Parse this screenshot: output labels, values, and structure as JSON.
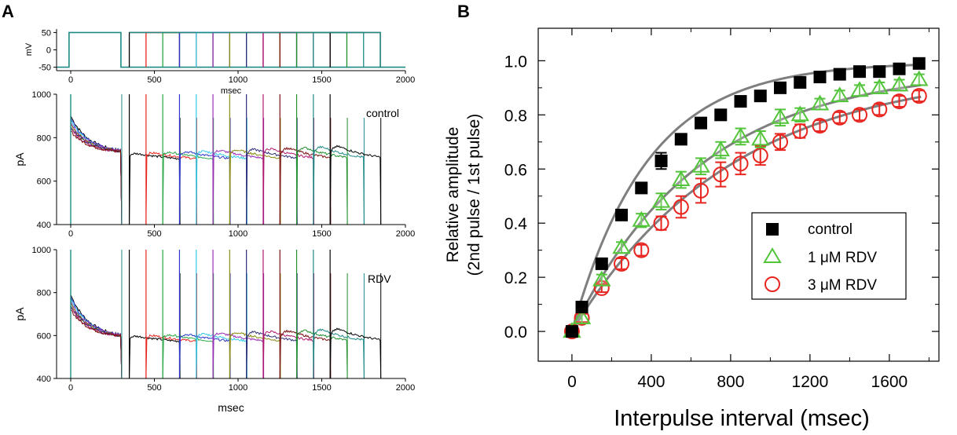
{
  "panels": {
    "A": "A",
    "B": "B"
  },
  "colors": {
    "trace_palette": [
      "#000000",
      "#e8251f",
      "#29a745",
      "#2b36c8",
      "#33c8e6",
      "#9b2fb8",
      "#8a8a12",
      "#2e2e7a",
      "#b0186e",
      "#7a1010",
      "#1f8f2c",
      "#1e8a86"
    ],
    "control": "#000000",
    "rdv1": "#52c43a",
    "rdv3": "#e8251f",
    "fit": "#7f7f7f"
  },
  "chart_data": [
    {
      "id": "protocol",
      "type": "line",
      "ylabel": "mV",
      "xlabel": "msec",
      "xlim": [
        0,
        2000
      ],
      "ylim": [
        -60,
        60
      ],
      "yticks": [
        -50,
        0,
        50
      ],
      "ytick_labels": [
        "-50",
        "0",
        "50"
      ],
      "xticks": [
        0,
        500,
        1000,
        1500,
        2000
      ],
      "xtick_labels": [
        "0",
        "500",
        "1000",
        "1500",
        "2000"
      ],
      "holding_mV": -50,
      "step_mV": 50,
      "first_pulse_ms": [
        -10,
        300
      ],
      "second_pulse_starts_ms": [
        350,
        450,
        550,
        650,
        750,
        850,
        950,
        1050,
        1150,
        1250,
        1350,
        1450,
        1550
      ],
      "second_pulse_ends_ms": [
        1850,
        1850,
        1850,
        1850,
        1850,
        1850,
        1850,
        1850,
        1850,
        1850,
        1850,
        1850,
        1850
      ]
    },
    {
      "id": "currents-control",
      "type": "line",
      "annotation": "control",
      "ylabel": "pA",
      "xlabel": "",
      "xlim": [
        0,
        2000
      ],
      "ylim": [
        400,
        1000
      ],
      "yticks": [
        400,
        600,
        800,
        1000
      ],
      "ytick_labels": [
        "400",
        "600",
        "800",
        "1000"
      ],
      "xticks": [
        0,
        500,
        1000,
        1500,
        2000
      ],
      "xtick_labels": [
        "0",
        "500",
        "1000",
        "1500",
        "2000"
      ],
      "first_peak_pA": 900,
      "first_end_pA": 730,
      "second_level_pA": 715,
      "second_pulse_starts_ms": [
        350,
        450,
        550,
        650,
        750,
        850,
        950,
        1050,
        1150,
        1250,
        1350,
        1450,
        1550
      ]
    },
    {
      "id": "currents-rdv",
      "type": "line",
      "annotation": "RDV",
      "ylabel": "pA",
      "xlabel": "msec",
      "xlim": [
        0,
        2000
      ],
      "ylim": [
        400,
        1000
      ],
      "yticks": [
        400,
        600,
        800,
        1000
      ],
      "ytick_labels": [
        "400",
        "600",
        "800",
        "1000"
      ],
      "xticks": [
        0,
        500,
        1000,
        1500,
        2000
      ],
      "xtick_labels": [
        "0",
        "500",
        "1000",
        "1500",
        "2000"
      ],
      "first_peak_pA": 790,
      "first_end_pA": 590,
      "second_level_pA": 585,
      "second_pulse_starts_ms": [
        350,
        450,
        550,
        650,
        750,
        850,
        950,
        1050,
        1150,
        1250,
        1350,
        1450,
        1550
      ]
    },
    {
      "id": "recovery",
      "type": "scatter",
      "title": "",
      "xlabel": "Interpulse interval (msec)",
      "ylabel": "Relative amplitude",
      "ylabel2": "(2nd pulse / 1st pulse)",
      "xlim": [
        -170,
        1850
      ],
      "ylim": [
        -0.11,
        1.12
      ],
      "xticks": [
        0,
        400,
        800,
        1200,
        1600
      ],
      "xtick_labels": [
        "0",
        "400",
        "800",
        "1200",
        "1600"
      ],
      "yticks": [
        0.0,
        0.2,
        0.4,
        0.6,
        0.8,
        1.0
      ],
      "ytick_labels": [
        "0.0",
        "0.2",
        "0.4",
        "0.6",
        "0.8",
        "1.0"
      ],
      "legend_position": "center-right",
      "x": [
        0,
        50,
        150,
        250,
        350,
        450,
        550,
        650,
        750,
        850,
        950,
        1050,
        1150,
        1250,
        1350,
        1450,
        1550,
        1650,
        1750
      ],
      "series": [
        {
          "name": "control",
          "marker": "square",
          "values": [
            0.0,
            0.09,
            0.25,
            0.43,
            0.53,
            0.63,
            0.71,
            0.77,
            0.8,
            0.85,
            0.87,
            0.9,
            0.92,
            0.94,
            0.95,
            0.96,
            0.96,
            0.97,
            0.99
          ],
          "errors": [
            0.01,
            0.01,
            0.015,
            0.015,
            0.015,
            0.03,
            0.015,
            0.015,
            0.015,
            0.015,
            0.01,
            0.01,
            0.01,
            0.01,
            0.01,
            0.01,
            0.01,
            0.01,
            0.01
          ],
          "fit": {
            "A": 0.995,
            "tau": 380
          }
        },
        {
          "name": "1 μM RDV",
          "marker": "triangle",
          "values": [
            0.0,
            0.05,
            0.19,
            0.31,
            0.41,
            0.48,
            0.56,
            0.61,
            0.67,
            0.72,
            0.71,
            0.79,
            0.8,
            0.84,
            0.87,
            0.89,
            0.9,
            0.91,
            0.93
          ],
          "errors": [
            0.01,
            0.02,
            0.02,
            0.02,
            0.025,
            0.03,
            0.03,
            0.03,
            0.03,
            0.03,
            0.03,
            0.03,
            0.025,
            0.02,
            0.02,
            0.02,
            0.02,
            0.02,
            0.02
          ],
          "fit": {
            "A": 0.975,
            "tau": 650
          }
        },
        {
          "name": "3 μM RDV",
          "marker": "circle",
          "values": [
            0.0,
            0.05,
            0.16,
            0.25,
            0.3,
            0.4,
            0.46,
            0.52,
            0.58,
            0.62,
            0.65,
            0.7,
            0.74,
            0.76,
            0.79,
            0.8,
            0.82,
            0.85,
            0.87
          ],
          "errors": [
            0.01,
            0.015,
            0.015,
            0.02,
            0.02,
            0.025,
            0.04,
            0.045,
            0.045,
            0.04,
            0.035,
            0.03,
            0.025,
            0.02,
            0.02,
            0.02,
            0.02,
            0.02,
            0.02
          ],
          "fit": {
            "A": 0.975,
            "tau": 800
          }
        }
      ]
    }
  ]
}
